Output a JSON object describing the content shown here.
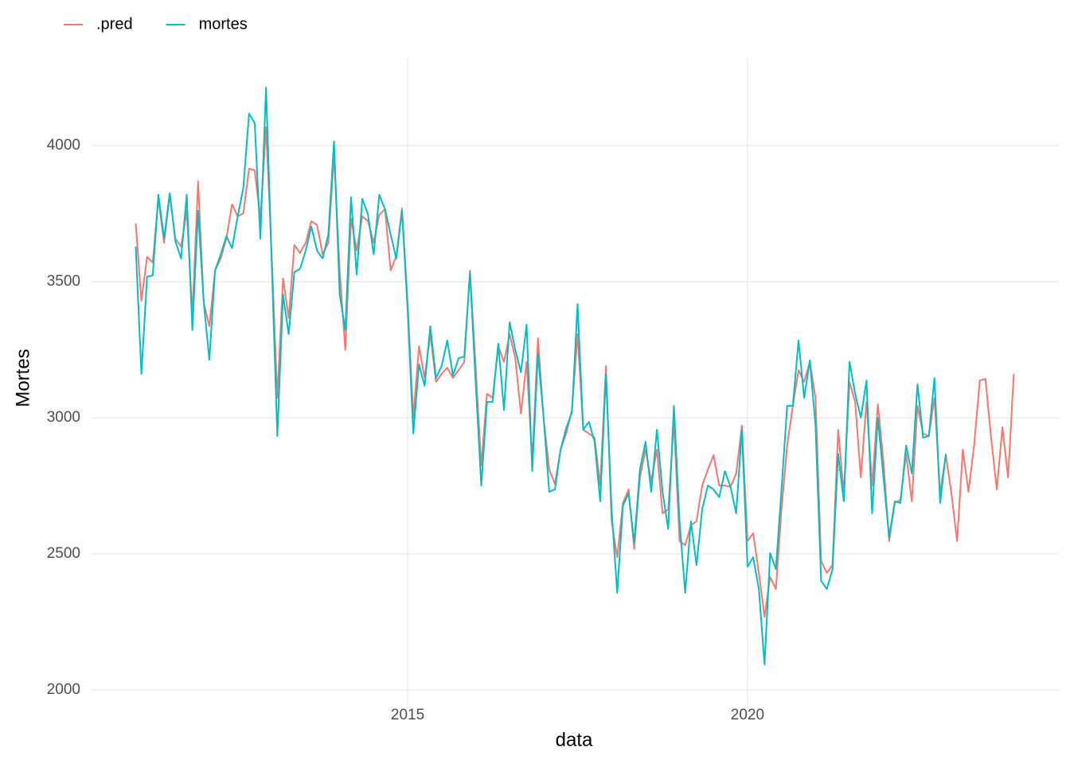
{
  "chart_data": {
    "type": "line",
    "x_label": "data",
    "y_label": "Mortes",
    "x": [
      2011,
      2011.083,
      2011.167,
      2011.25,
      2011.333,
      2011.417,
      2011.5,
      2011.583,
      2011.667,
      2011.75,
      2011.833,
      2011.917,
      2012,
      2012.083,
      2012.167,
      2012.25,
      2012.333,
      2012.417,
      2012.5,
      2012.583,
      2012.667,
      2012.75,
      2012.833,
      2012.917,
      2013,
      2013.083,
      2013.167,
      2013.25,
      2013.333,
      2013.417,
      2013.5,
      2013.583,
      2013.667,
      2013.75,
      2013.833,
      2013.917,
      2014,
      2014.083,
      2014.167,
      2014.25,
      2014.333,
      2014.417,
      2014.5,
      2014.583,
      2014.667,
      2014.75,
      2014.833,
      2014.917,
      2015,
      2015.083,
      2015.167,
      2015.25,
      2015.333,
      2015.417,
      2015.5,
      2015.583,
      2015.667,
      2015.75,
      2015.833,
      2015.917,
      2016,
      2016.083,
      2016.167,
      2016.25,
      2016.333,
      2016.417,
      2016.5,
      2016.583,
      2016.667,
      2016.75,
      2016.833,
      2016.917,
      2017,
      2017.083,
      2017.167,
      2017.25,
      2017.333,
      2017.417,
      2017.5,
      2017.583,
      2017.667,
      2017.75,
      2017.833,
      2017.917,
      2018,
      2018.083,
      2018.167,
      2018.25,
      2018.333,
      2018.417,
      2018.5,
      2018.583,
      2018.667,
      2018.75,
      2018.833,
      2018.917,
      2019,
      2019.083,
      2019.167,
      2019.25,
      2019.333,
      2019.417,
      2019.5,
      2019.583,
      2019.667,
      2019.75,
      2019.833,
      2019.917,
      2020,
      2020.083,
      2020.167,
      2020.25,
      2020.333,
      2020.417,
      2020.5,
      2020.583,
      2020.667,
      2020.75,
      2020.833,
      2020.917,
      2021,
      2021.083,
      2021.167,
      2021.25,
      2021.333,
      2021.417,
      2021.5,
      2021.583,
      2021.667,
      2021.75,
      2021.833,
      2021.917,
      2022,
      2022.083,
      2022.167,
      2022.25,
      2022.333,
      2022.417,
      2022.5,
      2022.583,
      2022.667,
      2022.75,
      2022.833,
      2022.917,
      2023,
      2023.083,
      2023.167,
      2023.25,
      2023.333,
      2023.417,
      2023.5,
      2023.583,
      2023.667,
      2023.75,
      2023.833,
      2023.917
    ],
    "series": [
      {
        "name": ".pred",
        "color": "#F8766D",
        "values": [
          3713,
          3430,
          3591,
          3570,
          3804,
          3643,
          3819,
          3658,
          3629,
          3760,
          3380,
          3868,
          3424,
          3336,
          3541,
          3585,
          3658,
          3784,
          3740,
          3751,
          3915,
          3909,
          3731,
          4067,
          3600,
          3073,
          3512,
          3366,
          3635,
          3605,
          3643,
          3722,
          3708,
          3600,
          3643,
          3965,
          3541,
          3249,
          3731,
          3614,
          3740,
          3722,
          3643,
          3746,
          3766,
          3541,
          3594,
          3769,
          3424,
          3000,
          3263,
          3146,
          3307,
          3132,
          3161,
          3184,
          3146,
          3175,
          3205,
          3541,
          3190,
          2825,
          3088,
          3073,
          3263,
          3205,
          3307,
          3219,
          3015,
          3205,
          2839,
          3292,
          3000,
          2810,
          2757,
          2883,
          2942,
          3029,
          3307,
          2956,
          2942,
          2927,
          2751,
          3190,
          2620,
          2488,
          2687,
          2737,
          2518,
          2781,
          2883,
          2766,
          2883,
          2649,
          2664,
          2985,
          2547,
          2532,
          2605,
          2620,
          2751,
          2810,
          2863,
          2751,
          2751,
          2746,
          2795,
          2971,
          2547,
          2576,
          2430,
          2269,
          2415,
          2371,
          2664,
          2898,
          3044,
          3175,
          3132,
          3205,
          3073,
          2474,
          2430,
          2459,
          2956,
          2722,
          3132,
          3058,
          2781,
          3058,
          2751,
          3050,
          2839,
          2547,
          2687,
          2699,
          2868,
          2693,
          3044,
          2942,
          2933,
          3073,
          2722,
          2863,
          2722,
          2547,
          2883,
          2728,
          2898,
          3137,
          3143,
          2927,
          2737,
          2965,
          2781,
          3161
        ]
      },
      {
        "name": "mortes",
        "color": "#00BFC4",
        "values": [
          3629,
          3161,
          3518,
          3523,
          3819,
          3658,
          3825,
          3649,
          3585,
          3819,
          3322,
          3760,
          3424,
          3213,
          3541,
          3600,
          3667,
          3623,
          3740,
          3845,
          4117,
          4082,
          3658,
          4213,
          3570,
          2933,
          3453,
          3307,
          3535,
          3547,
          3614,
          3702,
          3614,
          3585,
          3673,
          4015,
          3453,
          3322,
          3810,
          3526,
          3804,
          3746,
          3600,
          3819,
          3766,
          3673,
          3585,
          3760,
          3395,
          2942,
          3196,
          3117,
          3336,
          3146,
          3190,
          3284,
          3155,
          3219,
          3225,
          3532,
          3132,
          2751,
          3058,
          3058,
          3272,
          3029,
          3351,
          3249,
          3167,
          3342,
          2804,
          3234,
          3000,
          2728,
          2737,
          2883,
          2962,
          3020,
          3418,
          2956,
          2985,
          2912,
          2693,
          3161,
          2664,
          2357,
          2678,
          2722,
          2541,
          2810,
          2912,
          2728,
          2956,
          2728,
          2591,
          3044,
          2620,
          2357,
          2620,
          2459,
          2664,
          2751,
          2737,
          2708,
          2804,
          2746,
          2649,
          2956,
          2453,
          2488,
          2371,
          2094,
          2503,
          2444,
          2737,
          3044,
          3044,
          3284,
          3073,
          3211,
          2971,
          2401,
          2371,
          2444,
          2868,
          2693,
          3205,
          3088,
          3000,
          3137,
          2649,
          3000,
          2781,
          2561,
          2693,
          2687,
          2898,
          2795,
          3123,
          2927,
          2933,
          3146,
          2687,
          2868,
          null,
          null,
          null,
          null,
          null,
          null,
          null,
          null,
          null,
          null,
          null,
          null
        ]
      }
    ],
    "xlim": [
      2010.35,
      2024.58
    ],
    "xticks": [
      2015,
      2020
    ],
    "ylim": [
      1933,
      4321
    ],
    "yticks": [
      2000,
      2500,
      3000,
      3500,
      4000
    ],
    "grid": true,
    "legend": "top-left"
  }
}
